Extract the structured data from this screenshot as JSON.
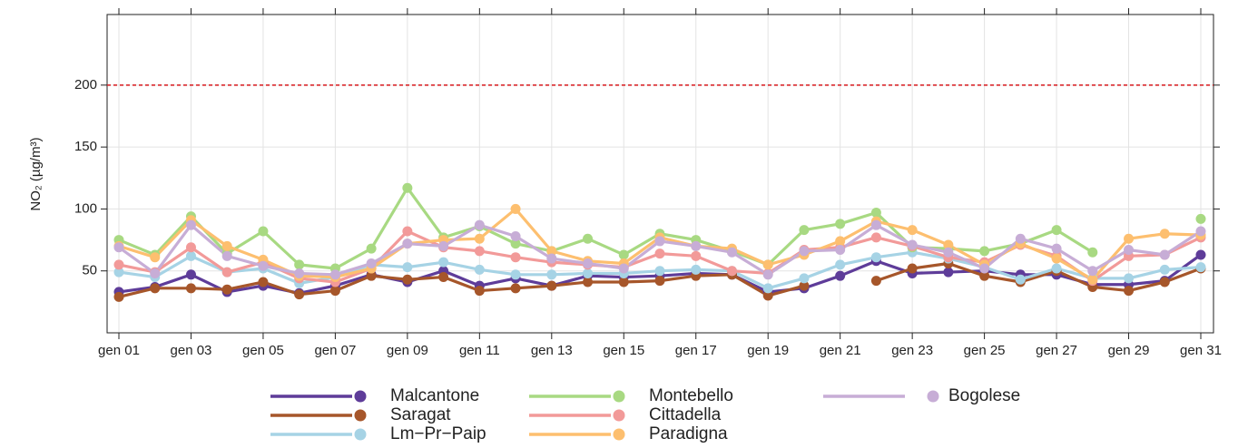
{
  "chart_data": {
    "type": "line",
    "y_label": "NO₂ (µg/m³)",
    "categories": [
      "gen 01",
      null,
      "gen 03",
      null,
      "gen 05",
      null,
      "gen 07",
      null,
      "gen 09",
      null,
      "gen 11",
      null,
      "gen 13",
      null,
      "gen 15",
      null,
      "gen 17",
      null,
      "gen 19",
      null,
      "gen 21",
      null,
      "gen 23",
      null,
      "gen 25",
      null,
      "gen 27",
      null,
      "gen 29",
      null,
      "gen 31"
    ],
    "ylim": [
      0,
      257
    ],
    "yticks": [
      50,
      100,
      150,
      200
    ],
    "grid": true,
    "reference_line": {
      "value": 200,
      "color": "#d7191c"
    },
    "legend_position": "bottom",
    "series": [
      {
        "name": "Malcantone",
        "color": "#5e3c99",
        "values": [
          33,
          37,
          47,
          33,
          38,
          32,
          38,
          47,
          41,
          50,
          38,
          44,
          38,
          46,
          45,
          46,
          48,
          47,
          33,
          36,
          46,
          58,
          48,
          49,
          50,
          47,
          47,
          39,
          39,
          42,
          63
        ]
      },
      {
        "name": "Saragat",
        "color": "#a6562a",
        "values": [
          29,
          36,
          36,
          35,
          41,
          31,
          34,
          46,
          43,
          45,
          34,
          36,
          38,
          41,
          41,
          42,
          46,
          47,
          30,
          38,
          null,
          42,
          52,
          56,
          46,
          41,
          50,
          37,
          34,
          41,
          52
        ]
      },
      {
        "name": "Lm−Pr−Paip",
        "color": "#a6d3e5",
        "values": [
          49,
          45,
          62,
          49,
          52,
          40,
          45,
          55,
          53,
          57,
          51,
          47,
          47,
          48,
          48,
          50,
          51,
          50,
          36,
          44,
          55,
          61,
          65,
          60,
          53,
          43,
          52,
          44,
          44,
          51,
          53
        ]
      },
      {
        "name": "Montebello",
        "color": "#a8d982",
        "values": [
          75,
          63,
          94,
          64,
          82,
          55,
          52,
          68,
          117,
          77,
          86,
          72,
          66,
          76,
          63,
          80,
          75,
          66,
          55,
          83,
          88,
          97,
          69,
          68,
          66,
          72,
          83,
          65,
          null,
          null,
          92
        ]
      },
      {
        "name": "Cittadella",
        "color": "#f29a99",
        "values": [
          55,
          49,
          69,
          49,
          57,
          44,
          41,
          52,
          82,
          69,
          66,
          61,
          57,
          55,
          53,
          64,
          62,
          50,
          48,
          67,
          69,
          77,
          70,
          61,
          57,
          71,
          62,
          42,
          62,
          63,
          77
        ]
      },
      {
        "name": "Paradigna",
        "color": "#fdbf6f",
        "values": [
          70,
          61,
          91,
          70,
          59,
          46,
          45,
          52,
          72,
          75,
          76,
          100,
          66,
          58,
          56,
          77,
          70,
          68,
          55,
          63,
          74,
          90,
          83,
          71,
          55,
          72,
          60,
          43,
          76,
          80,
          79
        ]
      },
      {
        "name": "Bogolese",
        "color": "#c7add6",
        "values": [
          69,
          48,
          87,
          62,
          54,
          48,
          47,
          56,
          72,
          70,
          87,
          78,
          60,
          56,
          52,
          74,
          70,
          65,
          47,
          66,
          67,
          87,
          71,
          65,
          52,
          76,
          68,
          50,
          67,
          63,
          82
        ]
      }
    ]
  }
}
